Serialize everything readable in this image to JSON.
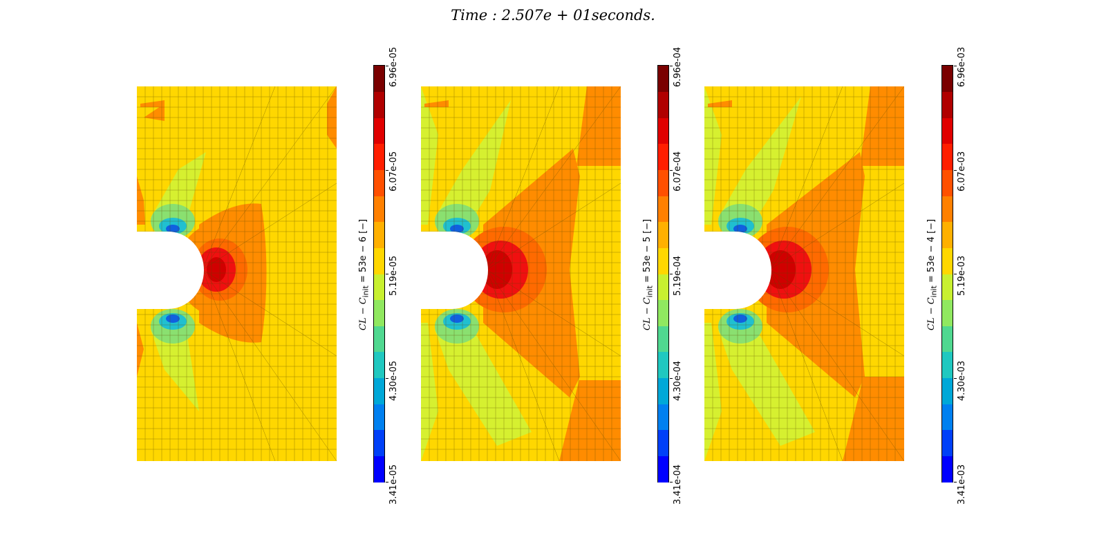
{
  "title": "Time : 2.507e + 01seconds.",
  "colormap": [
    "#0000ff",
    "#0060ef",
    "#009ae0",
    "#1cc8c0",
    "#60dc80",
    "#c8f030",
    "#ffd700",
    "#ffa000",
    "#ff6a00",
    "#ff1e00",
    "#de0000",
    "#b00000",
    "#900000",
    "#6a0000",
    "#ff0000",
    "#0000cc"
  ],
  "mesh_colors": {
    "background": "#ffd700",
    "orange": "#ff8c00",
    "deep_orange": "#ff6a00",
    "red": "#f01010",
    "dark_red": "#d00000",
    "yellow_green": "#d6f030",
    "green": "#8ae070",
    "cyan": "#20c0d0",
    "blue": "#1060e0",
    "line": "#5a4a00"
  },
  "panels": [
    {
      "id": "p1",
      "colorbar_label": {
        "main": "CL − C",
        "sub": "init",
        "rest": " = 53e − 6 [−]"
      },
      "ticks": [
        "3.41e-05",
        "4.30e-05",
        "5.19e-05",
        "6.07e-05",
        "6.96e-05"
      ]
    },
    {
      "id": "p2",
      "colorbar_label": {
        "main": "CL − C",
        "sub": "init",
        "rest": " = 53e − 5 [−]"
      },
      "ticks": [
        "3.41e-04",
        "4.30e-04",
        "5.19e-04",
        "6.07e-04",
        "6.96e-04"
      ]
    },
    {
      "id": "p3",
      "colorbar_label": {
        "main": "CL − C",
        "sub": "init",
        "rest": " = 53e − 4 [−]"
      },
      "ticks": [
        "3.41e-03",
        "4.30e-03",
        "5.19e-03",
        "6.07e-03",
        "6.96e-03"
      ]
    }
  ]
}
